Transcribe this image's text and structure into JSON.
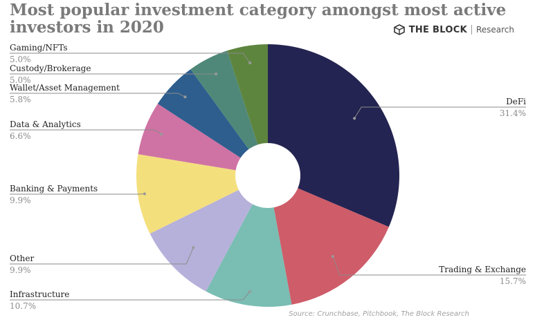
{
  "header": {
    "title": "Most popular investment category amongst most active investors in 2020"
  },
  "brand": {
    "name": "THE BLOCK",
    "sub": "Research",
    "icon": "the-block-logo-icon"
  },
  "source": "Source: Crunchbase, Pitchbook, The Block Research",
  "chart_data": {
    "type": "pie",
    "donut": true,
    "title": "Most popular investment category amongst most active investors in 2020",
    "unit": "%",
    "slices": [
      {
        "label": "DeFi",
        "value": 31.4,
        "display": "31.4%",
        "color": "#242452"
      },
      {
        "label": "Trading & Exchange",
        "value": 15.7,
        "display": "15.7%",
        "color": "#cf5c69"
      },
      {
        "label": "Infrastructure",
        "value": 10.7,
        "display": "10.7%",
        "color": "#79bdb3"
      },
      {
        "label": "Other",
        "value": 9.9,
        "display": "9.9%",
        "color": "#b6b1da"
      },
      {
        "label": "Banking & Payments",
        "value": 9.9,
        "display": "9.9%",
        "color": "#f4df7d"
      },
      {
        "label": "Data & Analytics",
        "value": 6.6,
        "display": "6.6%",
        "color": "#cf73a4"
      },
      {
        "label": "Wallet/Asset Management",
        "value": 5.8,
        "display": "5.8%",
        "color": "#2d5e8e"
      },
      {
        "label": "Custody/Brokerage",
        "value": 5.0,
        "display": "5.0%",
        "color": "#4f8878"
      },
      {
        "label": "Gaming/NFTs",
        "value": 5.0,
        "display": "5.0%",
        "color": "#5e853e"
      }
    ]
  }
}
